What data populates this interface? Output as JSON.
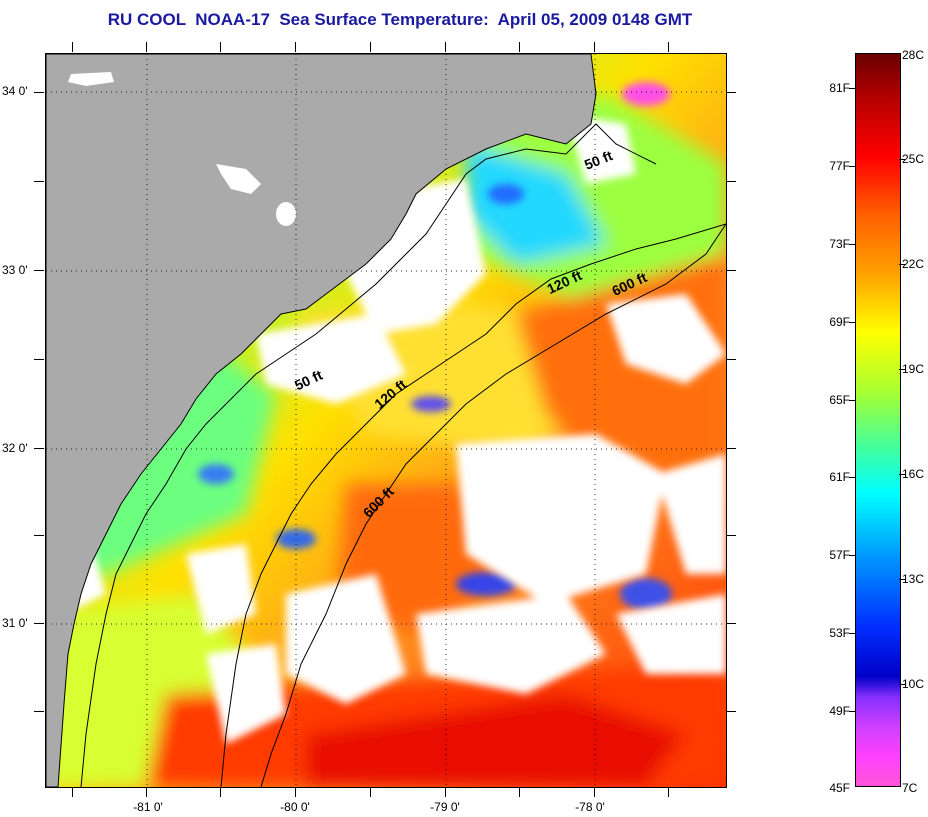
{
  "title": "RU COOL  NOAA-17  Sea Surface Temperature:  April 05, 2009 0148 GMT",
  "latitude_labels": [
    "34 0'",
    "33 0'",
    "32 0'",
    "31 0'"
  ],
  "longitude_labels": [
    "-81 0'",
    "-80 0'",
    "-79 0'",
    "-78 0'"
  ],
  "contour_labels": [
    "50 ft",
    "120 ft",
    "600 ft",
    "50 ft",
    "120 ft",
    "600 ft"
  ],
  "colorbar": {
    "fahrenheit": [
      "81F",
      "77F",
      "73F",
      "69F",
      "65F",
      "61F",
      "57F",
      "53F",
      "49F",
      "45F"
    ],
    "celsius": [
      "28C",
      "25C",
      "22C",
      "19C",
      "16C",
      "13C",
      "10C",
      "7C"
    ]
  },
  "colors": {
    "land": "#aaaaaa",
    "cloud": "#ffffff",
    "title": "#1a1aa0"
  }
}
